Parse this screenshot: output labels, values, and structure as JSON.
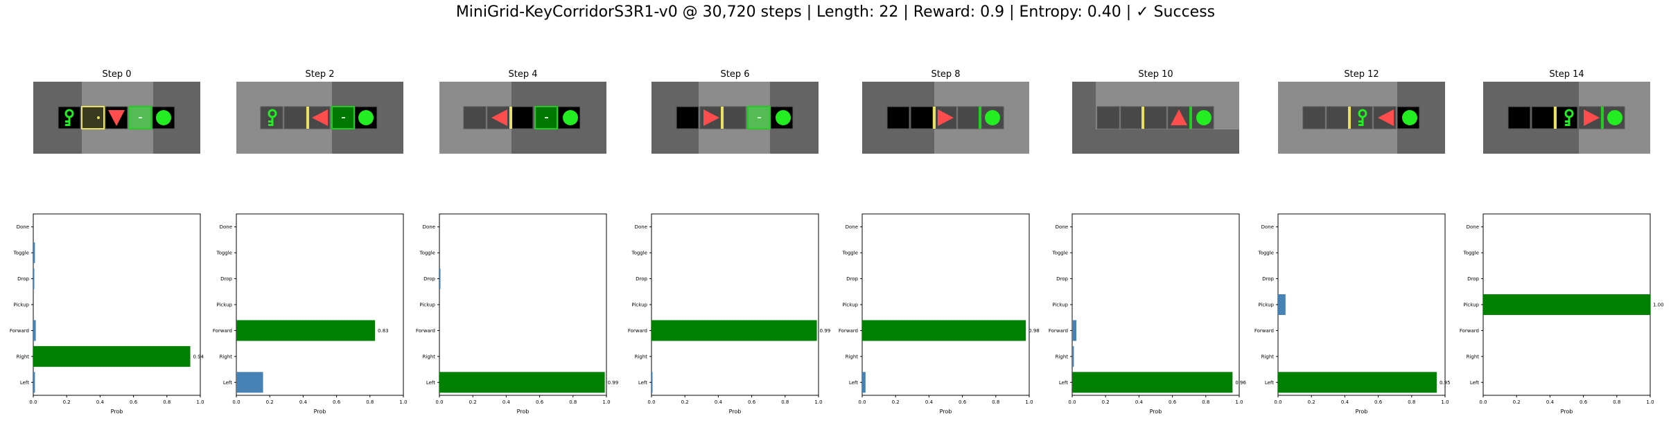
{
  "title": "MiniGrid-KeyCorridorS3R1-v0 @ 30,720 steps | Length: 22 | Reward: 0.9 | Entropy: 0.40 | ✓ Success",
  "colors": {
    "chosen_bar": "#008000",
    "other_bar": "#4682b4",
    "floor_dark": "#646464",
    "floor_light": "#8c8c8c",
    "cell_black": "#000000",
    "corridor_cell": "#484848",
    "agent": "#ff4d4d",
    "goal_ball": "#22ee22",
    "key": "#22ee22",
    "door_yellow": "#e8e060",
    "door_green": "#22cc22"
  },
  "icons": [
    "agent-triangle-icon",
    "key-icon",
    "ball-icon",
    "door-icon"
  ],
  "chart_data": {
    "type": "bar",
    "orientation": "horizontal",
    "categories": [
      "Left",
      "Right",
      "Forward",
      "Pickup",
      "Drop",
      "Toggle",
      "Done"
    ],
    "xlabel": "Prob",
    "xlim": [
      0,
      1
    ],
    "xticks": [
      "0.0",
      "0.2",
      "0.4",
      "0.6",
      "0.8",
      "1.0"
    ],
    "panels": [
      {
        "title": "Step 0",
        "values": [
          0.01,
          0.94,
          0.015,
          0.0,
          0.005,
          0.01,
          0.0
        ],
        "chosen": 1,
        "label": "0.94"
      },
      {
        "title": "Step 2",
        "values": [
          0.16,
          0.0,
          0.83,
          0.0,
          0.0,
          0.0,
          0.0
        ],
        "chosen": 2,
        "label": "0.83"
      },
      {
        "title": "Step 4",
        "values": [
          0.99,
          0.0,
          0.0,
          0.0,
          0.005,
          0.0,
          0.0
        ],
        "chosen": 0,
        "label": "0.99"
      },
      {
        "title": "Step 6",
        "values": [
          0.005,
          0.0,
          0.99,
          0.0,
          0.0,
          0.0,
          0.0
        ],
        "chosen": 2,
        "label": "0.99"
      },
      {
        "title": "Step 8",
        "values": [
          0.02,
          0.0,
          0.98,
          0.0,
          0.0,
          0.0,
          0.0
        ],
        "chosen": 2,
        "label": "0.98"
      },
      {
        "title": "Step 10",
        "values": [
          0.96,
          0.01,
          0.025,
          0.0,
          0.0,
          0.0,
          0.0
        ],
        "chosen": 0,
        "label": "0.96"
      },
      {
        "title": "Step 12",
        "values": [
          0.95,
          0.0,
          0.0,
          0.045,
          0.0,
          0.0,
          0.0
        ],
        "chosen": 0,
        "label": "0.95"
      },
      {
        "title": "Step 14",
        "values": [
          0.0,
          0.0,
          0.0,
          1.0,
          0.0,
          0.0,
          0.0
        ],
        "chosen": 3,
        "label": "1.00"
      }
    ]
  }
}
